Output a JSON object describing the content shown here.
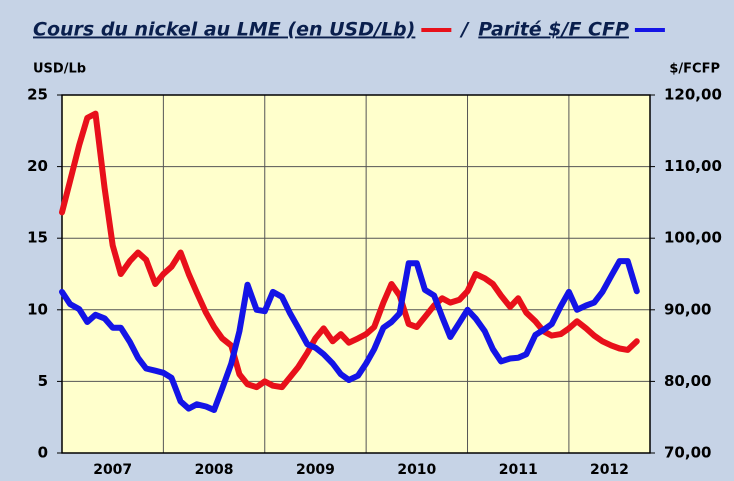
{
  "chart_data": {
    "type": "line",
    "legend_separator": "/",
    "ylabel": "USD/Lb",
    "y2label": "$/FCFP",
    "xlim": [
      2007,
      2012.8
    ],
    "xticks": [
      2007,
      2008,
      2009,
      2010,
      2011,
      2012
    ],
    "ylim": [
      0,
      25
    ],
    "yticks": [
      0,
      5,
      10,
      15,
      20,
      25
    ],
    "y2lim": [
      70,
      120
    ],
    "y2ticks": [
      {
        "value": 70,
        "label": "70,00"
      },
      {
        "value": 80,
        "label": "80,00"
      },
      {
        "value": 90,
        "label": "90,00"
      },
      {
        "value": 100,
        "label": "100,00"
      },
      {
        "value": 110,
        "label": "110,00"
      },
      {
        "value": 120,
        "label": "120,00"
      }
    ],
    "grid": true,
    "x": [
      2007,
      2007.08,
      2007.17,
      2007.25,
      2007.33,
      2007.42,
      2007.5,
      2007.58,
      2007.67,
      2007.75,
      2007.83,
      2007.92,
      2008,
      2008.08,
      2008.17,
      2008.25,
      2008.33,
      2008.42,
      2008.5,
      2008.58,
      2008.67,
      2008.75,
      2008.83,
      2008.92,
      2009,
      2009.08,
      2009.17,
      2009.25,
      2009.33,
      2009.42,
      2009.5,
      2009.58,
      2009.67,
      2009.75,
      2009.83,
      2009.92,
      2010,
      2010.08,
      2010.17,
      2010.25,
      2010.33,
      2010.42,
      2010.5,
      2010.58,
      2010.67,
      2010.75,
      2010.83,
      2010.92,
      2011,
      2011.08,
      2011.17,
      2011.25,
      2011.33,
      2011.42,
      2011.5,
      2011.58,
      2011.67,
      2011.75,
      2011.83,
      2011.92,
      2012,
      2012.08,
      2012.17,
      2012.25,
      2012.33,
      2012.42,
      2012.5,
      2012.58,
      2012.67
    ],
    "series": [
      {
        "name": "Cours du nickel au LME (en USD/Lb)",
        "color": "#e8101a",
        "values": [
          16.8,
          19,
          21.5,
          23.4,
          23.7,
          18.5,
          14.5,
          12.5,
          13.4,
          14,
          13.5,
          11.8,
          12.5,
          13,
          14,
          12.5,
          11.2,
          9.8,
          8.8,
          8,
          7.5,
          5.5,
          4.8,
          4.6,
          5,
          4.7,
          4.6,
          5.3,
          6,
          7,
          8,
          8.7,
          7.8,
          8.3,
          7.7,
          8,
          8.3,
          8.8,
          10.5,
          11.8,
          11,
          9,
          8.8,
          9.5,
          10.3,
          10.8,
          10.5,
          10.7,
          11.3,
          12.5,
          12.2,
          11.8,
          11,
          10.2,
          10.8,
          9.8,
          9.2,
          8.5,
          8.2,
          8.3,
          8.7,
          9.2,
          8.7,
          8.2,
          7.8,
          7.5,
          7.3,
          7.2,
          7.8
        ]
      },
      {
        "name": "Parité $/F CFP",
        "color": "#1414e6",
        "axis": "y2",
        "values": [
          92.5,
          90.8,
          90.1,
          88.3,
          89.3,
          88.8,
          87.5,
          87.5,
          85.5,
          83.3,
          81.8,
          81.5,
          81.2,
          80.5,
          77.2,
          76.2,
          76.8,
          76.5,
          76,
          79,
          82.5,
          87,
          93.5,
          90,
          89.8,
          92.5,
          91.8,
          89.5,
          87.5,
          85.2,
          84.7,
          83.8,
          82.5,
          81,
          80.2,
          80.8,
          82.5,
          84.5,
          87.5,
          88.3,
          89.5,
          96.5,
          96.5,
          92.8,
          92,
          89,
          86.2,
          88.2,
          90,
          88.8,
          87,
          84.5,
          82.8,
          83.2,
          83.3,
          83.8,
          86.5,
          87.2,
          88,
          90.5,
          92.5,
          90,
          90.6,
          91,
          92.5,
          94.8,
          96.8,
          96.8,
          92.6
        ]
      }
    ]
  }
}
